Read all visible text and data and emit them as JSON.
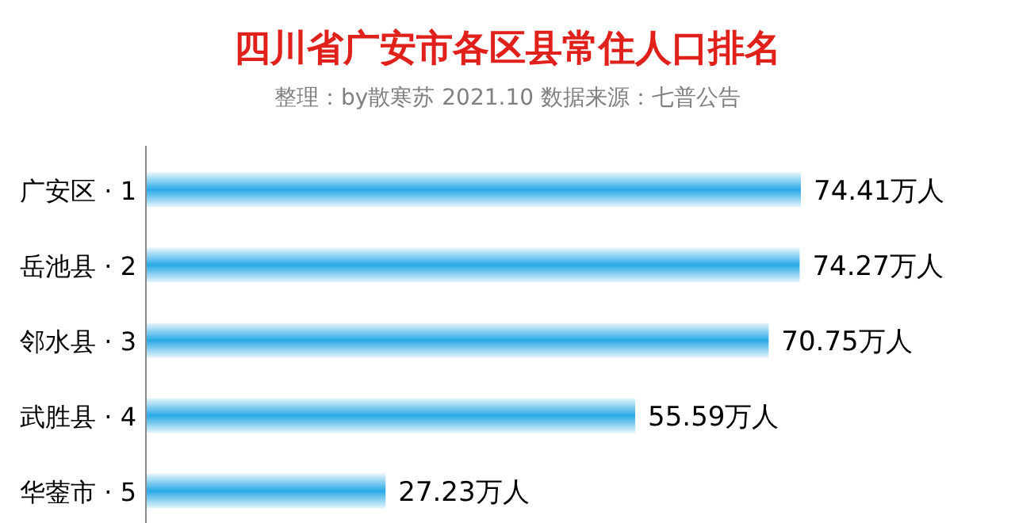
{
  "chart_data": {
    "type": "bar",
    "orientation": "horizontal",
    "title": "四川省广安市各区县常住人口排名",
    "subtitle": "整理：by散寒苏  2021.10  数据来源：七普公告",
    "categories": [
      "广安区 · 1",
      "岳池县 · 2",
      "邻水县 · 3",
      "武胜县 · 4",
      "华蓥市 · 5"
    ],
    "values": [
      74.41,
      74.27,
      70.75,
      55.59,
      27.23
    ],
    "value_labels": [
      "74.41万人",
      "74.27万人",
      "70.75万人",
      "55.59万人",
      "27.23万人"
    ],
    "color": "#29a9e6"
  }
}
